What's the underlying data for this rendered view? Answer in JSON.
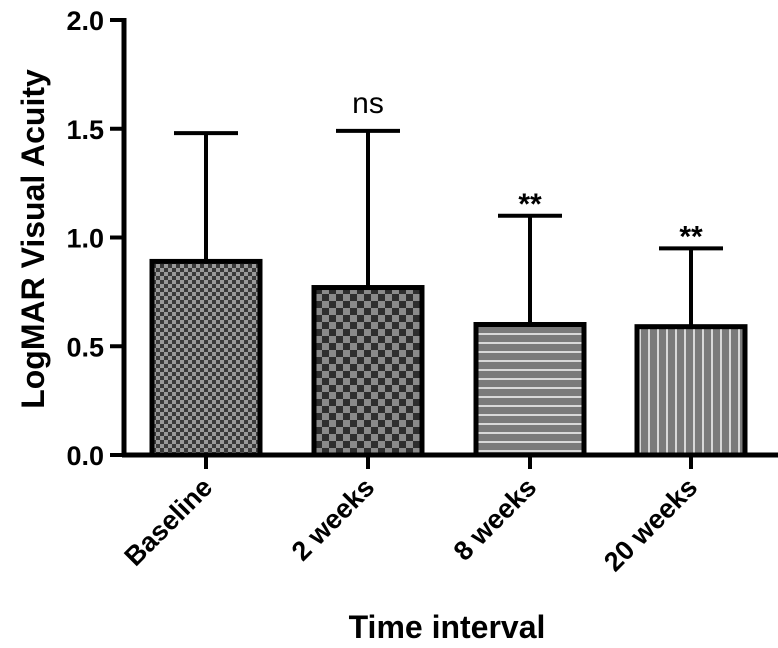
{
  "chart_data": {
    "type": "bar",
    "title": "",
    "xlabel": "Time interval",
    "ylabel": "LogMAR Visual Acuity",
    "categories": [
      "Baseline",
      "2 weeks",
      "8 weeks",
      "20 weeks"
    ],
    "values": [
      0.89,
      0.77,
      0.6,
      0.59
    ],
    "error_upper": [
      1.48,
      1.49,
      1.1,
      0.95
    ],
    "annotations": [
      "",
      "ns",
      "**",
      "**"
    ],
    "patterns": [
      "fine-checker",
      "coarse-checker",
      "horizontal-stripes",
      "vertical-stripes"
    ],
    "ylim": [
      0.0,
      2.0
    ],
    "yticks": [
      "0.0",
      "0.5",
      "1.0",
      "1.5",
      "2.0"
    ],
    "grid": false,
    "legend": "none",
    "colors": {
      "bar_fill": "#6e6e6e",
      "bar_stroke": "#000000",
      "pattern_light": "#9a9a9a",
      "pattern_dark": "#333333"
    }
  }
}
